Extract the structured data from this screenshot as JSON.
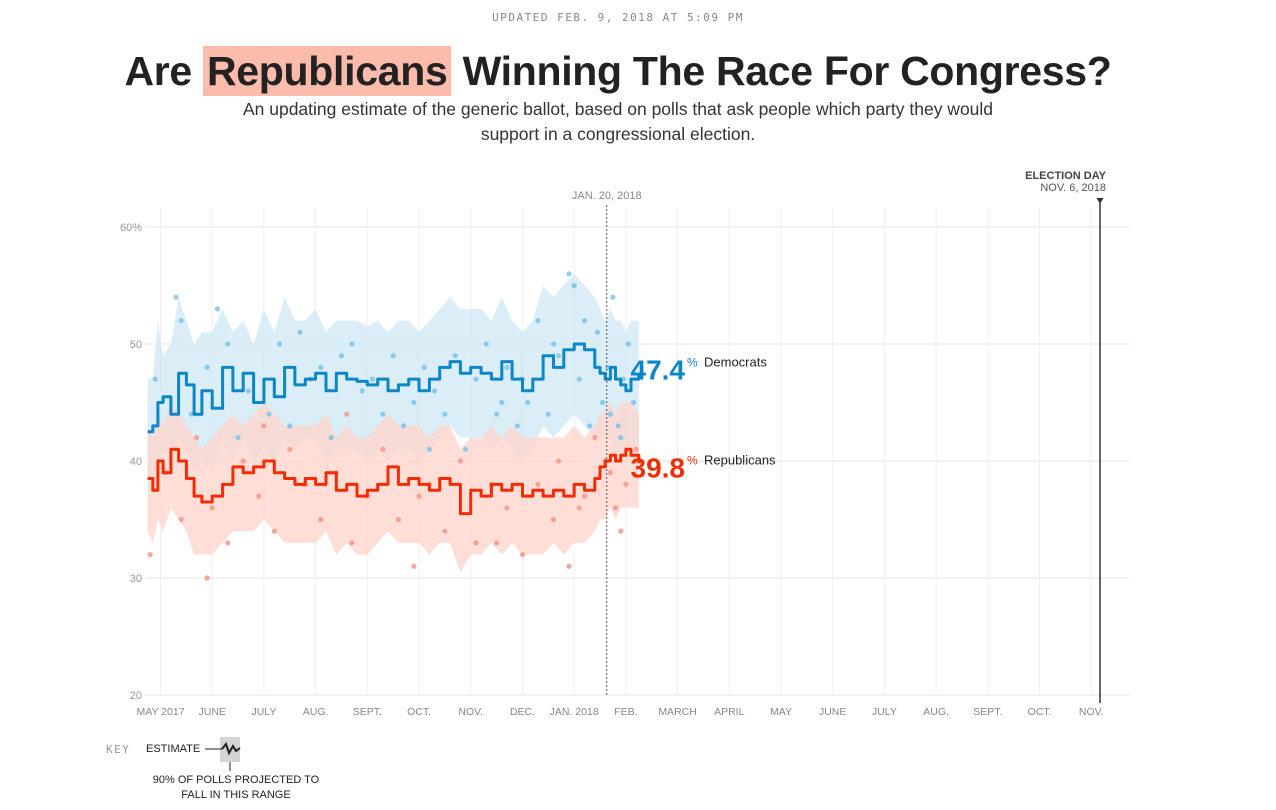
{
  "header": {
    "updated": "UPDATED FEB. 9, 2018 AT 5:09 PM",
    "title_before": "Are",
    "title_highlight": "Republicans",
    "title_after": "Winning The Race For Congress?",
    "subtitle": "An updating estimate of the generic ballot, based on polls that ask people which party they would support in a congressional election."
  },
  "colors": {
    "democrats": "#0b86c8",
    "republicans": "#f22c05",
    "dem_band": "#cfe8f6",
    "rep_band": "#fdd3ca",
    "dem_dot": "#7cc3e8",
    "rep_dot": "#f7968a"
  },
  "key": {
    "label": "KEY",
    "estimate": "ESTIMATE",
    "range": "90% OF POLLS PROJECTED TO FALL IN THIS RANGE"
  },
  "chart_data": {
    "type": "line",
    "title": "Are Republicans Winning The Race For Congress?",
    "ylim": [
      20,
      60
    ],
    "y_ticks": [
      "20",
      "30",
      "40",
      "50",
      "60%"
    ],
    "y_tick_values": [
      20,
      30,
      40,
      50,
      60
    ],
    "x_labels": [
      "MAY 2017",
      "JUNE",
      "JULY",
      "AUG.",
      "SEPT.",
      "OCT.",
      "NOV.",
      "DEC.",
      "JAN. 2018",
      "FEB.",
      "MARCH",
      "APRIL",
      "MAY",
      "JUNE",
      "JULY",
      "AUG.",
      "SEPT.",
      "OCT.",
      "NOV."
    ],
    "x_label_months": [
      4,
      5,
      6,
      7,
      8,
      9,
      10,
      11,
      12,
      13,
      14,
      15,
      16,
      17,
      18,
      19,
      20,
      21,
      22
    ],
    "xlim_months": [
      3.7,
      22.75
    ],
    "grid": true,
    "annotations": [
      {
        "label": "JAN. 20, 2018",
        "month": 12.63,
        "style": "dotted"
      },
      {
        "label": "ELECTION DAY",
        "sublabel": "NOV. 6, 2018",
        "month": 22.17,
        "style": "solid"
      }
    ],
    "series": [
      {
        "name": "Democrats",
        "current_value": "47.4",
        "current_suffix": "%",
        "x": [
          3.75,
          3.85,
          3.95,
          4.05,
          4.2,
          4.35,
          4.5,
          4.65,
          4.8,
          5.0,
          5.2,
          5.4,
          5.6,
          5.8,
          6.0,
          6.2,
          6.4,
          6.6,
          6.8,
          7.0,
          7.2,
          7.4,
          7.6,
          7.8,
          8.0,
          8.2,
          8.4,
          8.6,
          8.8,
          9.0,
          9.2,
          9.4,
          9.6,
          9.8,
          10.0,
          10.2,
          10.4,
          10.6,
          10.8,
          11.0,
          11.2,
          11.4,
          11.6,
          11.8,
          12.0,
          12.2,
          12.4,
          12.5,
          12.6,
          12.7,
          12.8,
          12.9,
          13.0,
          13.1,
          13.25
        ],
        "values": [
          42.5,
          43.0,
          45.0,
          45.5,
          44.0,
          47.5,
          46.5,
          44.0,
          46.0,
          44.5,
          48.0,
          46.0,
          47.5,
          45.0,
          47.0,
          45.5,
          48.0,
          46.5,
          47.0,
          47.5,
          46.0,
          47.5,
          47.0,
          46.8,
          46.5,
          47.0,
          46.0,
          46.5,
          47.0,
          46.0,
          47.0,
          48.0,
          48.5,
          47.5,
          48.0,
          47.5,
          47.0,
          48.5,
          47.0,
          46.0,
          47.0,
          49.0,
          48.0,
          49.5,
          50.0,
          49.5,
          48.0,
          47.5,
          47.0,
          48.0,
          47.0,
          46.5,
          46.0,
          47.0,
          47.4
        ],
        "band_upper": [
          47.0,
          47.0,
          52.0,
          49.0,
          50.0,
          54.0,
          52.0,
          50.0,
          51.0,
          51.0,
          53.0,
          51.0,
          52.0,
          50.0,
          53.0,
          51.0,
          54.0,
          52.0,
          52.0,
          53.0,
          51.0,
          52.0,
          52.0,
          52.0,
          51.5,
          52.0,
          51.0,
          52.0,
          52.0,
          51.0,
          52.0,
          53.0,
          54.0,
          53.0,
          53.0,
          53.0,
          52.0,
          54.0,
          52.0,
          51.0,
          52.0,
          55.0,
          54.0,
          55.0,
          56.0,
          55.0,
          54.0,
          53.0,
          52.0,
          53.0,
          52.0,
          52.0,
          51.0,
          52.0,
          52.0
        ],
        "band_lower": [
          38.0,
          39.0,
          40.0,
          41.0,
          40.0,
          42.0,
          41.0,
          39.0,
          40.0,
          39.0,
          42.0,
          40.0,
          42.0,
          40.0,
          41.0,
          40.0,
          42.0,
          41.0,
          42.0,
          42.0,
          40.0,
          41.0,
          41.0,
          41.0,
          40.0,
          41.0,
          40.0,
          41.0,
          41.0,
          40.0,
          41.0,
          42.0,
          43.0,
          42.0,
          42.0,
          42.0,
          41.0,
          42.0,
          41.0,
          40.0,
          41.0,
          43.0,
          42.0,
          43.0,
          44.0,
          43.0,
          42.0,
          42.0,
          42.0,
          42.0,
          41.0,
          41.0,
          40.0,
          41.0,
          41.0
        ],
        "poll_x": [
          3.9,
          4.3,
          4.6,
          4.9,
          5.3,
          5.5,
          5.7,
          6.1,
          6.3,
          6.5,
          6.9,
          7.1,
          7.3,
          7.7,
          8.1,
          8.3,
          8.5,
          8.7,
          9.1,
          9.3,
          9.5,
          9.7,
          9.9,
          10.1,
          10.3,
          10.5,
          10.7,
          10.9,
          11.1,
          11.3,
          11.5,
          11.7,
          11.9,
          12.1,
          12.3,
          12.45,
          12.55,
          12.65,
          12.75,
          12.85,
          12.95,
          13.05,
          13.15,
          5.1,
          6.7,
          7.5,
          8.9,
          11.0,
          11.6,
          12.0,
          12.2,
          12.7,
          12.9,
          4.4,
          7.9,
          9.2,
          10.6
        ],
        "poll_y": [
          47,
          54,
          44,
          48,
          50,
          42,
          46,
          44,
          50,
          43,
          47,
          48,
          42,
          50,
          47,
          44,
          49,
          43,
          48,
          46,
          44,
          49,
          41,
          47,
          50,
          44,
          48,
          43,
          45,
          52,
          44,
          49,
          56,
          47,
          43,
          51,
          45,
          48,
          54,
          43,
          47,
          50,
          45,
          53,
          51,
          49,
          45,
          47,
          50,
          55,
          52,
          44,
          42,
          52,
          46,
          41,
          45
        ]
      },
      {
        "name": "Republicans",
        "current_value": "39.8",
        "current_suffix": "%",
        "x": [
          3.75,
          3.85,
          3.95,
          4.05,
          4.2,
          4.35,
          4.5,
          4.65,
          4.8,
          5.0,
          5.2,
          5.4,
          5.6,
          5.8,
          6.0,
          6.2,
          6.4,
          6.6,
          6.8,
          7.0,
          7.2,
          7.4,
          7.6,
          7.8,
          8.0,
          8.2,
          8.4,
          8.6,
          8.8,
          9.0,
          9.2,
          9.4,
          9.6,
          9.8,
          10.0,
          10.2,
          10.4,
          10.6,
          10.8,
          11.0,
          11.2,
          11.4,
          11.6,
          11.8,
          12.0,
          12.2,
          12.4,
          12.5,
          12.6,
          12.7,
          12.8,
          12.9,
          13.0,
          13.1,
          13.25
        ],
        "values": [
          38.5,
          37.5,
          40.0,
          39.0,
          41.0,
          40.0,
          38.5,
          37.0,
          36.5,
          37.0,
          38.0,
          39.5,
          39.0,
          39.5,
          40.0,
          39.0,
          38.5,
          38.0,
          38.5,
          38.0,
          39.0,
          37.5,
          38.0,
          37.0,
          37.5,
          38.0,
          39.5,
          38.0,
          38.5,
          38.0,
          37.5,
          38.5,
          38.0,
          35.5,
          37.5,
          37.0,
          38.0,
          37.5,
          38.0,
          37.0,
          37.5,
          37.0,
          37.5,
          37.0,
          38.0,
          37.5,
          38.5,
          39.5,
          40.0,
          40.5,
          40.0,
          40.5,
          41.0,
          40.5,
          39.8
        ],
        "band_upper": [
          43.0,
          42.0,
          44.0,
          43.0,
          45.0,
          44.0,
          43.0,
          42.0,
          41.0,
          42.0,
          43.0,
          44.0,
          43.0,
          44.0,
          45.0,
          44.0,
          43.0,
          43.0,
          43.0,
          43.0,
          44.0,
          42.0,
          43.0,
          42.0,
          42.0,
          43.0,
          44.0,
          43.0,
          43.0,
          43.0,
          42.0,
          43.0,
          43.0,
          41.0,
          42.0,
          42.0,
          43.0,
          42.0,
          43.0,
          42.0,
          42.0,
          42.0,
          42.0,
          42.0,
          43.0,
          42.0,
          43.0,
          44.0,
          44.0,
          45.0,
          44.0,
          45.0,
          45.0,
          45.0,
          44.0
        ],
        "band_lower": [
          34.0,
          33.0,
          35.0,
          34.0,
          36.0,
          35.0,
          34.0,
          32.0,
          32.0,
          32.0,
          33.0,
          34.0,
          34.0,
          34.0,
          35.0,
          34.0,
          33.0,
          33.0,
          33.0,
          33.0,
          34.0,
          32.0,
          33.0,
          32.0,
          32.0,
          33.0,
          34.0,
          33.0,
          33.0,
          33.0,
          32.0,
          33.0,
          33.0,
          30.5,
          32.0,
          32.0,
          33.0,
          32.0,
          33.0,
          32.0,
          32.0,
          32.0,
          33.0,
          32.0,
          33.0,
          33.0,
          34.0,
          35.0,
          35.0,
          36.0,
          35.0,
          36.0,
          36.0,
          36.0,
          36.0
        ],
        "poll_x": [
          3.8,
          4.1,
          4.4,
          4.7,
          5.0,
          5.3,
          5.6,
          5.9,
          6.2,
          6.5,
          6.8,
          7.1,
          7.4,
          7.7,
          8.0,
          8.3,
          8.6,
          8.9,
          9.2,
          9.5,
          9.8,
          10.1,
          10.4,
          10.7,
          11.0,
          11.3,
          11.6,
          11.9,
          12.2,
          12.4,
          12.6,
          12.8,
          13.0,
          13.2,
          4.9,
          6.0,
          7.6,
          9.0,
          10.5,
          11.7,
          12.1,
          12.7,
          12.9
        ],
        "poll_y": [
          32,
          39,
          35,
          42,
          36,
          33,
          40,
          37,
          34,
          41,
          38,
          35,
          39,
          33,
          37,
          41,
          35,
          31,
          38,
          34,
          40,
          33,
          38,
          36,
          32,
          38,
          35,
          31,
          37,
          42,
          40,
          36,
          38,
          41,
          30,
          43,
          44,
          37,
          33,
          40,
          36,
          39,
          34
        ]
      }
    ]
  }
}
